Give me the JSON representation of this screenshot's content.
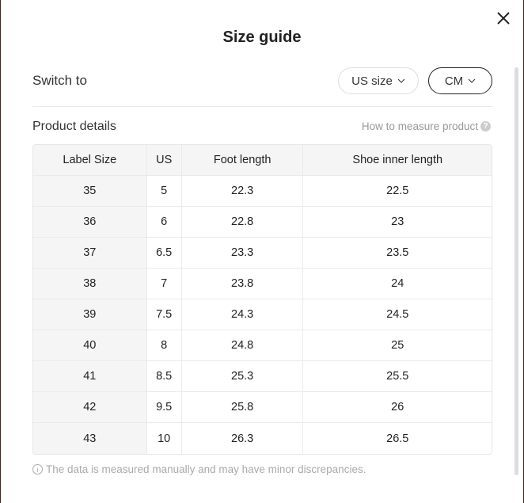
{
  "title": "Size guide",
  "switch_label": "Switch to",
  "size_select": "US size",
  "unit_select": "CM",
  "product_details": "Product details",
  "how_to_measure": "How to measure product",
  "table": {
    "headers": [
      "Label Size",
      "US",
      "Foot length",
      "Shoe inner length"
    ],
    "rows": [
      [
        "35",
        "5",
        "22.3",
        "22.5"
      ],
      [
        "36",
        "6",
        "22.8",
        "23"
      ],
      [
        "37",
        "6.5",
        "23.3",
        "23.5"
      ],
      [
        "38",
        "7",
        "23.8",
        "24"
      ],
      [
        "39",
        "7.5",
        "24.3",
        "24.5"
      ],
      [
        "40",
        "8",
        "24.8",
        "25"
      ],
      [
        "41",
        "8.5",
        "25.3",
        "25.5"
      ],
      [
        "42",
        "9.5",
        "25.8",
        "26"
      ],
      [
        "43",
        "10",
        "26.3",
        "26.5"
      ]
    ]
  },
  "note": "The data is measured manually and may have minor discrepancies.",
  "icons": {
    "close": "close-icon",
    "chevron": "chevron-down-icon",
    "help": "question-icon",
    "info": "info-icon"
  }
}
